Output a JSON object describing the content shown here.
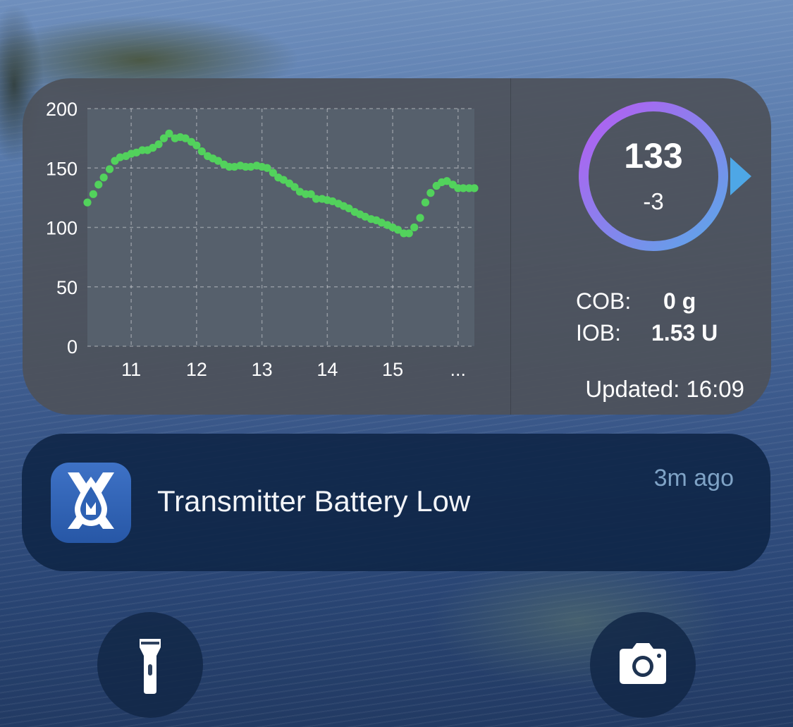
{
  "widget": {
    "glucose_value": "133",
    "glucose_delta": "-3",
    "cob_label": "COB:",
    "cob_value": "0 g",
    "iob_label": "IOB:",
    "iob_value": "1.53 U",
    "updated": "Updated: 16:09",
    "ring_gradient": [
      "#b65cf2",
      "#5aa8e8"
    ],
    "trend_arrow_color": "#4ea7e6",
    "trend_icon": "arrow-right-icon"
  },
  "chart_data": {
    "type": "scatter",
    "title": "",
    "xlabel": "",
    "ylabel": "",
    "yticks": [
      "200",
      "150",
      "100",
      "50",
      "0"
    ],
    "xticks": [
      "11",
      "12",
      "13",
      "14",
      "15",
      "..."
    ],
    "ylim": [
      0,
      200
    ],
    "xlim": [
      10.33,
      16.25
    ],
    "grid": true,
    "point_color": "#52d25c",
    "series": [
      {
        "x": [
          10.33,
          10.42,
          10.5,
          10.58,
          10.67,
          10.75,
          10.83,
          10.92,
          11.0,
          11.08,
          11.17,
          11.25,
          11.33,
          11.42,
          11.5,
          11.58,
          11.67,
          11.75,
          11.83,
          11.92,
          12.0,
          12.08,
          12.17,
          12.25,
          12.33,
          12.42,
          12.5,
          12.58,
          12.67,
          12.75,
          12.83,
          12.92,
          13.0,
          13.08,
          13.17,
          13.25,
          13.33,
          13.42,
          13.5,
          13.58,
          13.67,
          13.75,
          13.83,
          13.92,
          14.0,
          14.08,
          14.17,
          14.25,
          14.33,
          14.42,
          14.5,
          14.58,
          14.67,
          14.75,
          14.83,
          14.92,
          15.0,
          15.08,
          15.17,
          15.25,
          15.33,
          15.42,
          15.5,
          15.58,
          15.67,
          15.75,
          15.83,
          15.92,
          16.0,
          16.08,
          16.17,
          16.25
        ],
        "y": [
          121,
          128,
          136,
          142,
          149,
          156,
          159,
          160,
          162,
          163,
          165,
          165,
          167,
          170,
          175,
          179,
          175,
          176,
          175,
          172,
          169,
          164,
          160,
          158,
          156,
          153,
          151,
          151,
          152,
          151,
          151,
          152,
          151,
          150,
          146,
          142,
          140,
          137,
          134,
          130,
          128,
          128,
          124,
          124,
          123,
          122,
          120,
          118,
          116,
          113,
          111,
          109,
          107,
          106,
          104,
          102,
          100,
          98,
          95,
          95,
          100,
          108,
          121,
          129,
          135,
          138,
          139,
          136,
          133,
          133,
          133,
          133
        ]
      }
    ]
  },
  "notification": {
    "title": "Transmitter Battery Low",
    "time": "3m ago",
    "app_icon": "xdrip-app-icon"
  },
  "quick_actions": {
    "left_icon": "flashlight-icon",
    "right_icon": "camera-icon"
  }
}
